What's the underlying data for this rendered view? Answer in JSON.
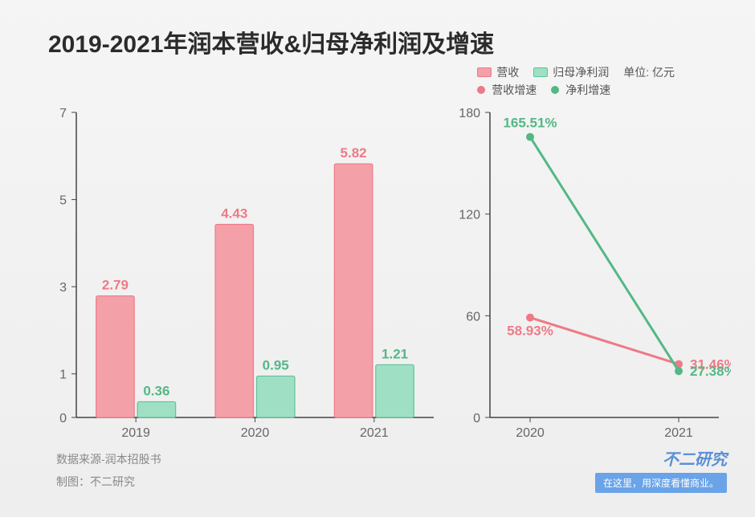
{
  "title": "2019-2021年润本营收&归母净利润及增速",
  "legend": {
    "revenue": "营收",
    "profit": "归母净利润",
    "revenue_growth": "营收增速",
    "profit_growth": "净利增速",
    "unit": "单位: 亿元"
  },
  "colors": {
    "pink": "#f4a0a8",
    "pink_border": "#ed7b87",
    "green": "#9fe0c4",
    "green_border": "#60c198",
    "pink_line": "#ee7a85",
    "green_line": "#53b886",
    "axis": "#444",
    "tick": "#666",
    "bg": "#f3f3f3"
  },
  "bar_chart": {
    "type": "bar",
    "categories": [
      "2019",
      "2020",
      "2021"
    ],
    "series": [
      {
        "name": "revenue",
        "values": [
          2.79,
          4.43,
          5.82
        ],
        "color_key": "pink"
      },
      {
        "name": "profit",
        "values": [
          0.36,
          0.95,
          1.21
        ],
        "color_key": "green"
      }
    ],
    "ylim": [
      0,
      7
    ],
    "yticks": [
      0,
      1,
      3,
      5,
      7
    ],
    "bar_width": 0.32,
    "label_fontsize": 17
  },
  "line_chart": {
    "type": "line",
    "categories": [
      "2020",
      "2021"
    ],
    "series": [
      {
        "name": "revenue_growth",
        "values": [
          58.93,
          31.46
        ],
        "color_key": "pink_line",
        "labels": [
          "58.93%",
          "31.46%"
        ]
      },
      {
        "name": "profit_growth",
        "values": [
          165.51,
          27.38
        ],
        "color_key": "green_line",
        "labels": [
          "165.51%",
          "27.38%"
        ]
      }
    ],
    "ylim": [
      0,
      180
    ],
    "yticks": [
      0,
      60,
      120,
      180
    ],
    "marker_size": 5,
    "line_width": 3
  },
  "footer": {
    "source": "数据来源-润本招股书",
    "maker": "制图：不二研究"
  },
  "brand": {
    "name": "不二研究",
    "tag": "在这里，用深度看懂商业。"
  }
}
